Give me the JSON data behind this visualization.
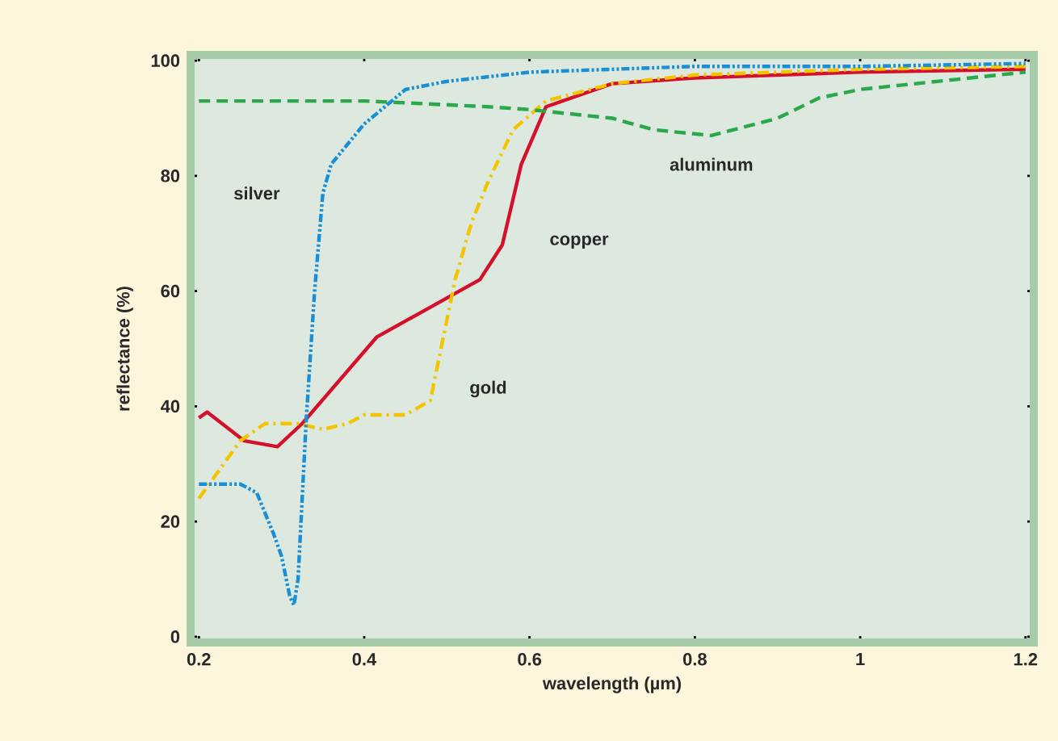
{
  "chart_data": {
    "type": "line",
    "xlabel": "wavelength (µm)",
    "ylabel": "reflectance (%)",
    "xlim": [
      0.19,
      1.21
    ],
    "ylim": [
      -1,
      101
    ],
    "xticks": [
      0.2,
      0.4,
      0.6,
      0.8,
      1,
      1.2
    ],
    "yticks": [
      0,
      20,
      40,
      60,
      80,
      100
    ],
    "grid": false,
    "legend": false,
    "marker": "none",
    "series": [
      {
        "name": "copper",
        "color": "#d4102a",
        "line_style": "solid",
        "x": [
          0.2,
          0.21,
          0.255,
          0.295,
          0.325,
          0.415,
          0.54,
          0.567,
          0.59,
          0.62,
          0.7,
          0.8,
          1.0,
          1.2
        ],
        "values": [
          38,
          39,
          34,
          33,
          37,
          52,
          62,
          68,
          82,
          92,
          96,
          97,
          98,
          98.5
        ]
      },
      {
        "name": "gold",
        "color": "#f5c400",
        "line_style": "dashdot",
        "x": [
          0.2,
          0.22,
          0.25,
          0.28,
          0.32,
          0.35,
          0.38,
          0.4,
          0.45,
          0.48,
          0.49,
          0.5,
          0.51,
          0.53,
          0.55,
          0.58,
          0.62,
          0.7,
          0.8,
          1.0,
          1.2
        ],
        "values": [
          24,
          28,
          34,
          37,
          37,
          36,
          37,
          38.5,
          38.5,
          41,
          48,
          55,
          62,
          72,
          79,
          88,
          93,
          96,
          97.5,
          98.5,
          99
        ]
      },
      {
        "name": "aluminum",
        "color": "#2aa84a",
        "line_style": "dashed",
        "x": [
          0.2,
          0.4,
          0.55,
          0.6,
          0.7,
          0.75,
          0.82,
          0.9,
          0.95,
          1.0,
          1.1,
          1.2
        ],
        "values": [
          93,
          93,
          92,
          91.5,
          90,
          88,
          87,
          90,
          93.5,
          95,
          96.5,
          98
        ]
      },
      {
        "name": "silver",
        "color": "#1a8fd6",
        "line_style": "dashdotdot",
        "x": [
          0.2,
          0.25,
          0.27,
          0.29,
          0.3,
          0.31,
          0.315,
          0.32,
          0.33,
          0.34,
          0.35,
          0.36,
          0.4,
          0.45,
          0.5,
          0.6,
          0.8,
          1.0,
          1.2
        ],
        "values": [
          26.5,
          26.5,
          25,
          18,
          14,
          7,
          5.5,
          10,
          38,
          60,
          77,
          82,
          89,
          95,
          96.4,
          98,
          99,
          99,
          99.5
        ]
      }
    ]
  }
}
